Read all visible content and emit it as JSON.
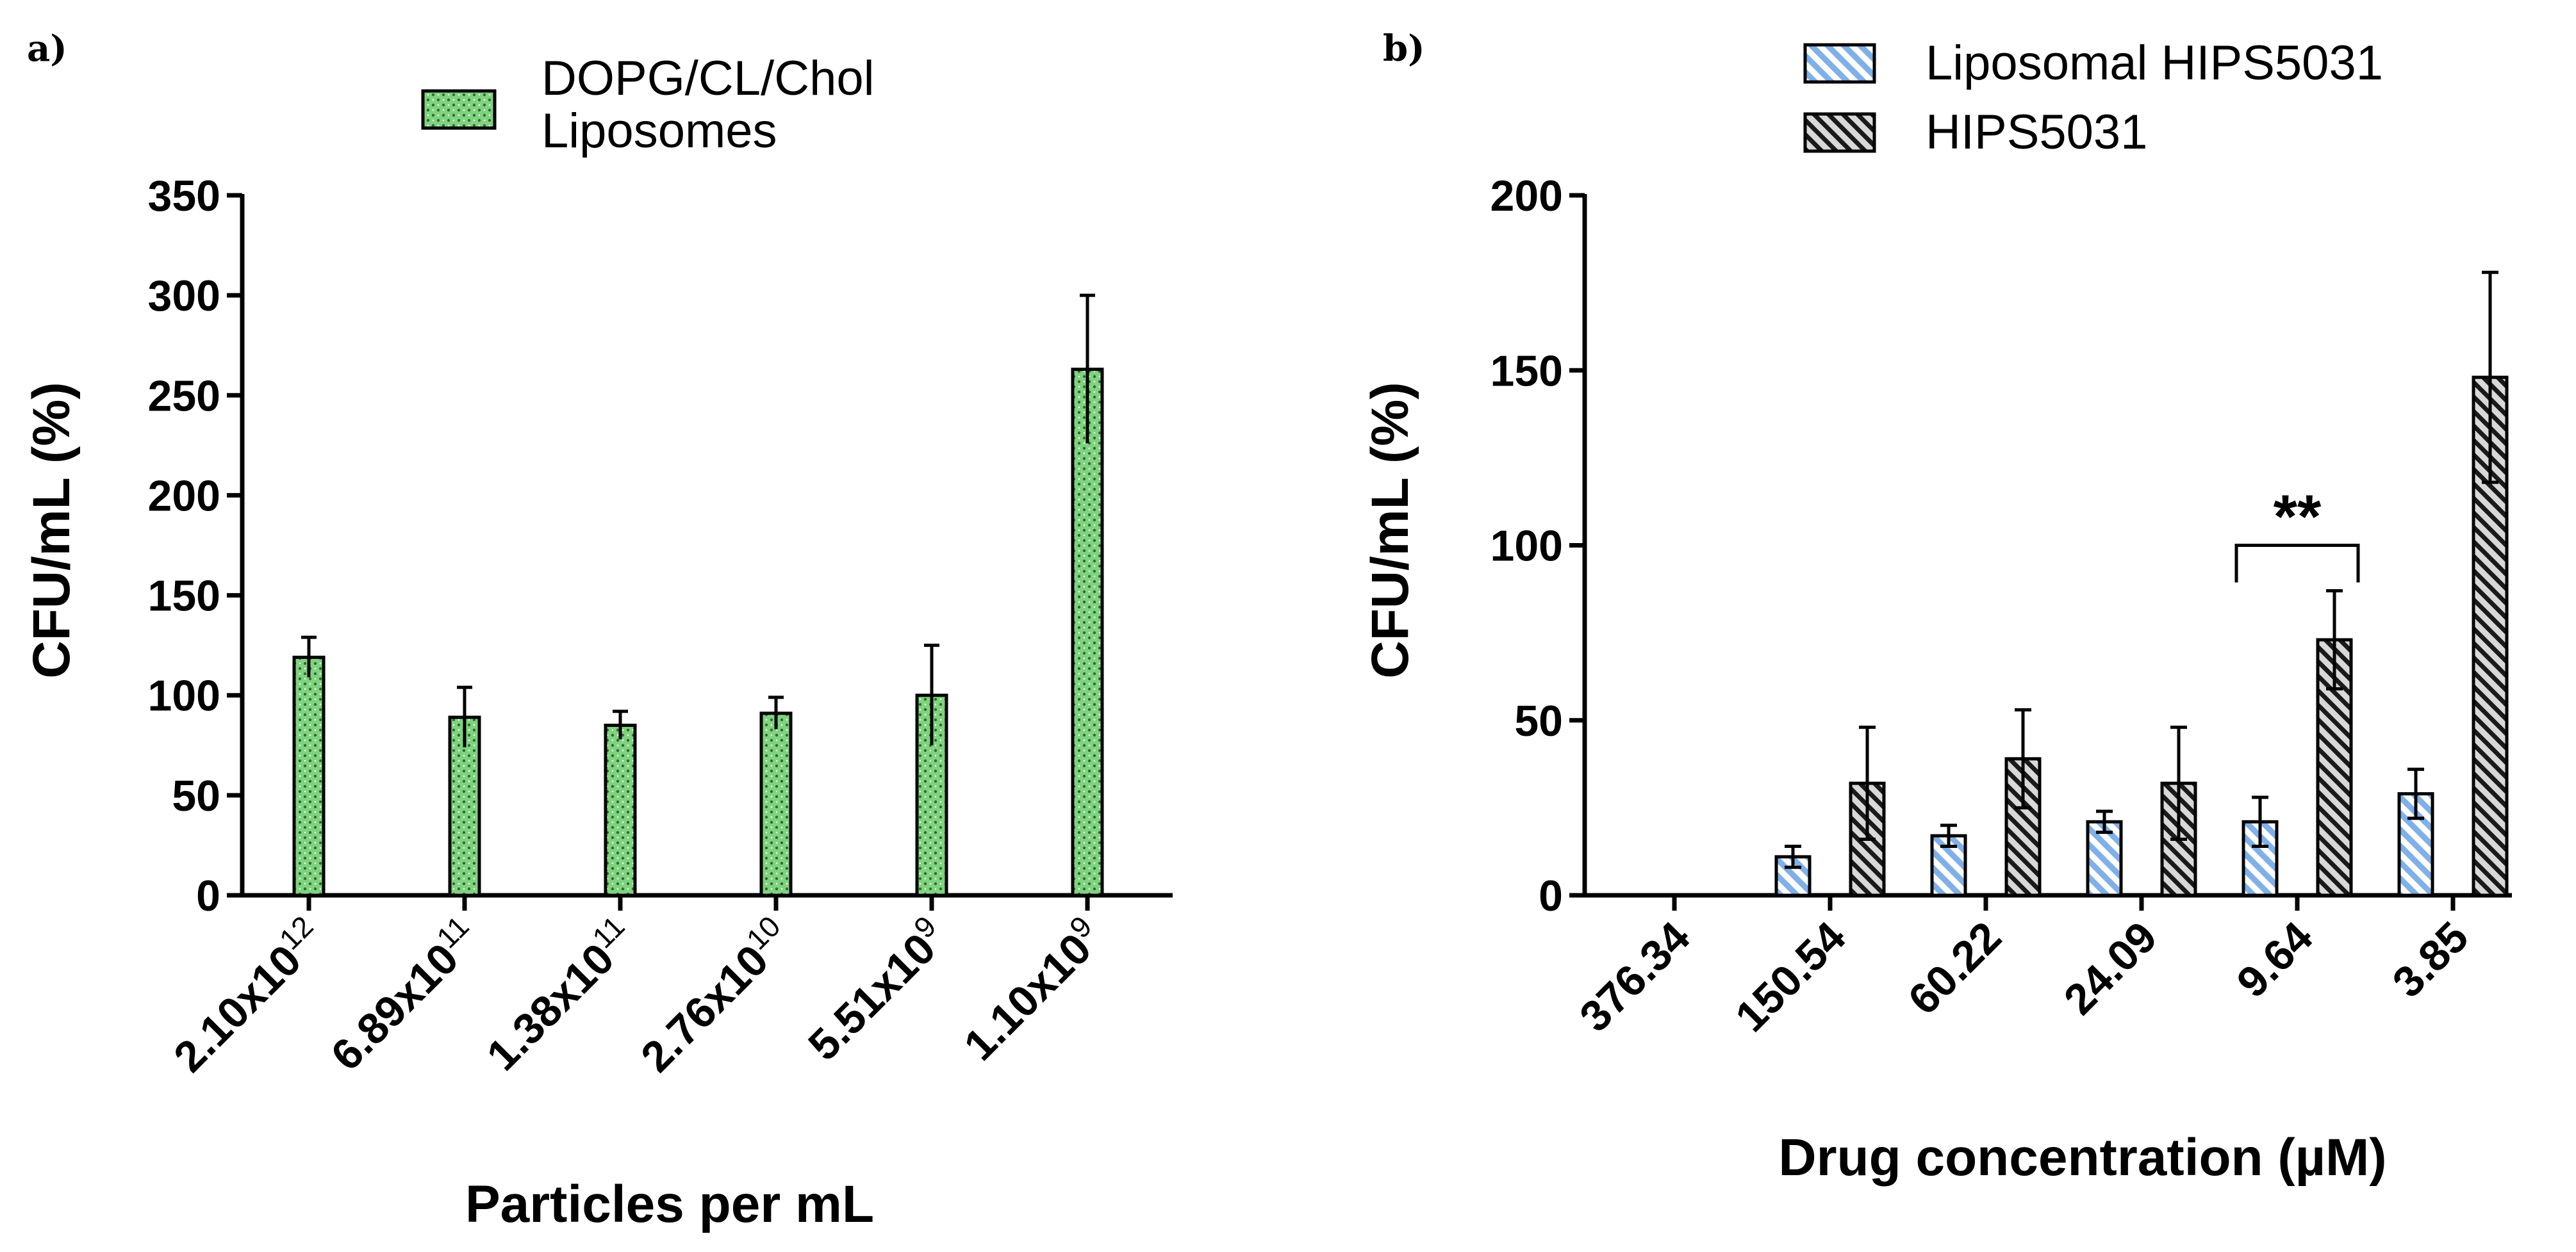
{
  "chart_data": [
    {
      "id": "a",
      "panel_label": "a)",
      "type": "bar",
      "title": "",
      "xlabel": "Particles per mL",
      "ylabel": "CFU/mL (%)",
      "ylim": [
        0,
        350
      ],
      "yticks": [
        0,
        50,
        100,
        150,
        200,
        250,
        300,
        350
      ],
      "categories": [
        {
          "base": "2.10x10",
          "exp": "12"
        },
        {
          "base": "6.89x10",
          "exp": "11"
        },
        {
          "base": "1.38x10",
          "exp": "11"
        },
        {
          "base": "2.76x10",
          "exp": "10"
        },
        {
          "base": "5.51x10",
          "exp": "9"
        },
        {
          "base": "1.10x10",
          "exp": "9"
        }
      ],
      "series": [
        {
          "name": "DOPG/CL/Chol Liposomes",
          "legend_lines": [
            "DOPG/CL/Chol",
            "Liposomes"
          ],
          "color": "#7fd37f",
          "pattern": "dots",
          "values": [
            119,
            89,
            85,
            91,
            100,
            263
          ],
          "errors": [
            10,
            15,
            7,
            8,
            25,
            37
          ]
        }
      ],
      "legend_position": "top-center"
    },
    {
      "id": "b",
      "panel_label": "b)",
      "type": "bar",
      "title": "",
      "xlabel": "Drug concentration (µM)",
      "ylabel": "CFU/mL (%)",
      "ylim": [
        0,
        200
      ],
      "yticks": [
        0,
        50,
        100,
        150,
        200
      ],
      "categories": [
        "376.34",
        "150.54",
        "60.22",
        "24.09",
        "9.64",
        "3.85"
      ],
      "series": [
        {
          "name": "Liposomal HIPS5031",
          "color": "#a9c8ee",
          "pattern": "diagonal-light",
          "values": [
            0,
            11,
            17,
            21,
            21,
            29
          ],
          "errors": [
            0,
            3,
            3,
            3,
            7,
            7
          ]
        },
        {
          "name": "HIPS5031",
          "color": "#bdbdbd",
          "pattern": "diagonal-dense",
          "values": [
            0,
            32,
            39,
            32,
            73,
            148
          ],
          "errors": [
            0,
            16,
            14,
            16,
            14,
            30
          ]
        }
      ],
      "annotations": [
        {
          "text": "**",
          "category": "9.64"
        }
      ],
      "legend_position": "top"
    }
  ]
}
